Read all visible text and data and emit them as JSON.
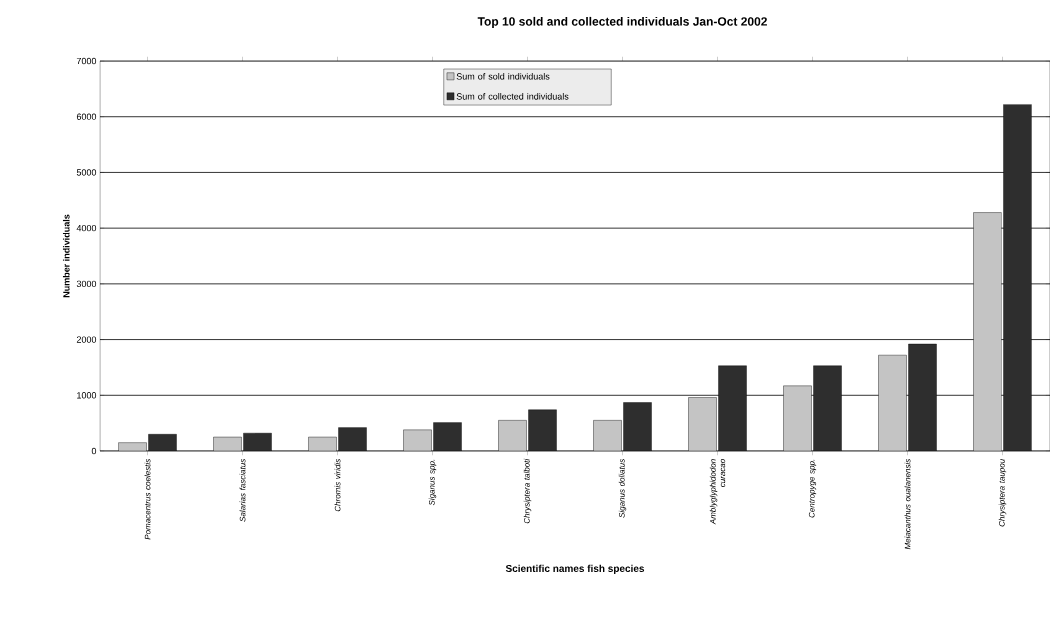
{
  "chart_data": {
    "type": "bar",
    "title": "Top 10 sold and collected individuals Jan-Oct 2002",
    "xlabel": "Scientific names fish species",
    "ylabel": "Number individuals",
    "categories": [
      "Pomacentrus coelestis",
      "Salarias fasciatus",
      "Chromis viridis",
      "Siganus spp.",
      "Chrysiptera talboti",
      "Siganus doliatus",
      "Amblyglyphidodon curacao",
      "Centropyge spp.",
      "Meiacanthus oualanensis",
      "Chrysiptera taupou"
    ],
    "series": [
      {
        "name": "Sum of sold individuals",
        "color": "#c4c4c4",
        "values": [
          150,
          250,
          250,
          380,
          550,
          550,
          960,
          1170,
          1720,
          4280
        ]
      },
      {
        "name": "Sum of collected individuals",
        "color": "#2e2e2e",
        "values": [
          300,
          320,
          420,
          510,
          740,
          870,
          1530,
          1530,
          1920,
          6220
        ]
      }
    ],
    "ylim": [
      0,
      7000
    ],
    "yticks": [
      0,
      1000,
      2000,
      3000,
      4000,
      5000,
      6000,
      7000
    ],
    "grid": "y",
    "legend": "top"
  }
}
